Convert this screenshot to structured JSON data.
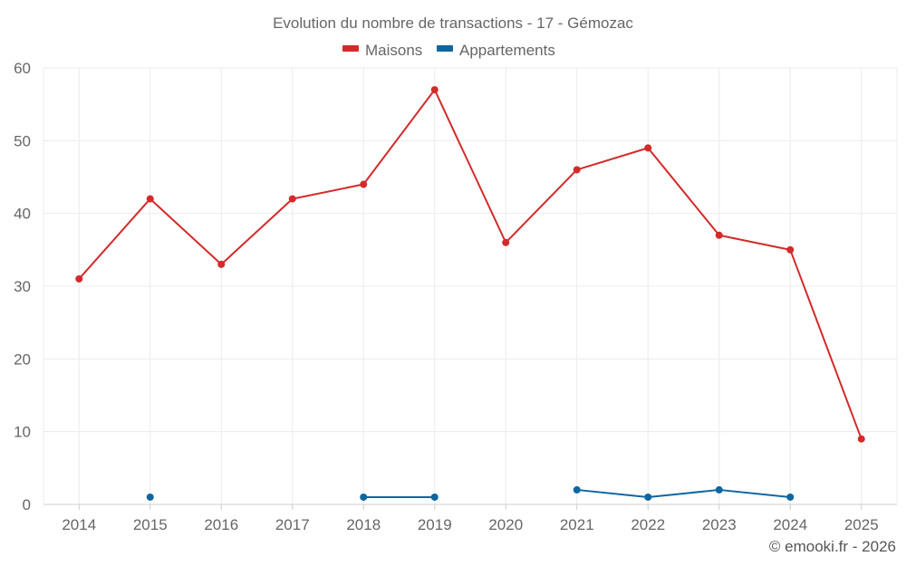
{
  "chart_data": {
    "type": "line",
    "title": "Evolution du nombre de transactions - 17 - Gémozac",
    "categories": [
      "2014",
      "2015",
      "2016",
      "2017",
      "2018",
      "2019",
      "2020",
      "2021",
      "2022",
      "2023",
      "2024",
      "2025"
    ],
    "series": [
      {
        "name": "Maisons",
        "color": "#d42a2a",
        "values": [
          31,
          42,
          33,
          42,
          44,
          57,
          36,
          46,
          49,
          37,
          35,
          9
        ]
      },
      {
        "name": "Appartements",
        "color": "#0e66a0",
        "values": [
          null,
          1,
          null,
          null,
          1,
          1,
          null,
          2,
          1,
          2,
          1,
          null
        ]
      }
    ],
    "yticks": [
      0,
      10,
      20,
      30,
      40,
      50,
      60
    ],
    "ylim": [
      0,
      60
    ],
    "xlabel": "",
    "ylabel": "",
    "grid": true,
    "legend": "top-center"
  },
  "credit": "© emooki.fr - 2026"
}
